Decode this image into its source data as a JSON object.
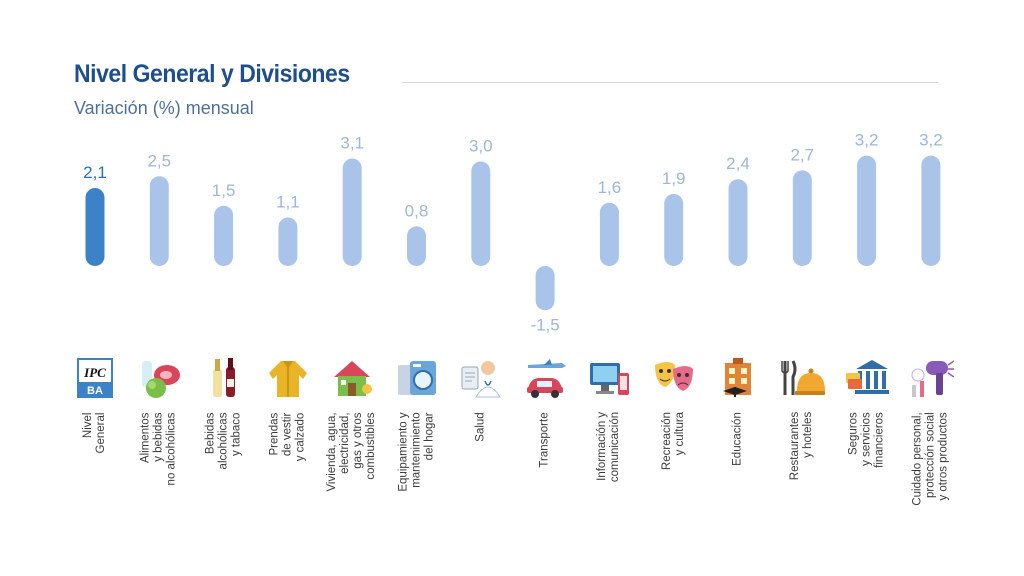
{
  "title": "Nivel General y Divisiones",
  "subtitle": "Variación (%) mensual",
  "colors": {
    "highlight": "#3b82c7",
    "bar": "#a9c4e8",
    "label_highlight": "#2c6fb8",
    "label": "#9db6d9",
    "title": "#1f4e8c"
  },
  "chart_data": {
    "type": "bar",
    "title": "Nivel General y Divisiones",
    "subtitle": "Variación (%) mensual",
    "xlabel": "",
    "ylabel": "",
    "ylim": [
      -1.5,
      3.2
    ],
    "grid": false,
    "legend": "none",
    "categories": [
      "Nivel General",
      "Alimentos y bebidas no alcohólicas",
      "Bebidas alcohólicas y tabaco",
      "Prendas de vestir y calzado",
      "Vivienda, agua, electricidad, gas y otros combustibles",
      "Equipamiento y mantenimiento del hogar",
      "Salud",
      "Transporte",
      "Información y comunicación",
      "Recreación y cultura",
      "Educación",
      "Restaurantes y hoteles",
      "Seguros y servicios financieros",
      "Cuidado personal, protección social y otros productos"
    ],
    "values": [
      2.1,
      2.5,
      1.5,
      1.1,
      3.1,
      0.8,
      3.0,
      -1.5,
      1.6,
      1.9,
      2.4,
      2.7,
      3.2,
      3.2
    ],
    "value_labels": [
      "2,1",
      "2,5",
      "1,5",
      "1,1",
      "3,1",
      "0,8",
      "3,0",
      "-1,5",
      "1,6",
      "1,9",
      "2,4",
      "2,7",
      "3,2",
      "3,2"
    ],
    "highlight_index": 0
  },
  "category_label_lines": [
    [
      "Nivel",
      "General"
    ],
    [
      "Alimentos",
      "y bebidas",
      "no alcohólicas"
    ],
    [
      "Bebidas",
      "alcohólicas",
      "y tabaco"
    ],
    [
      "Prendas",
      "de vestir",
      "y calzado"
    ],
    [
      "Vivienda, agua,",
      "electricidad,",
      "gas y otros",
      "combustibles"
    ],
    [
      "Equipamiento y",
      "mantenimiento",
      "del hogar"
    ],
    [
      "Salud"
    ],
    [
      "Transporte"
    ],
    [
      "Información y",
      "comunicación"
    ],
    [
      "Recreación",
      "y cultura"
    ],
    [
      "Educación"
    ],
    [
      "Restaurantes",
      "y hoteles"
    ],
    [
      "Seguros",
      "y servicios",
      "financieros"
    ],
    [
      "Cuidado personal,",
      "protección social",
      "y otros productos"
    ]
  ],
  "icons": [
    "ipc-ba-logo-icon",
    "food-icon",
    "wine-bottles-icon",
    "jacket-icon",
    "house-icon",
    "washing-machine-icon",
    "doctor-icon",
    "plane-car-icon",
    "computer-phone-icon",
    "theater-masks-icon",
    "school-building-icon",
    "dining-bell-icon",
    "bank-icon",
    "hair-dryer-icon"
  ],
  "logo_text": {
    "top": "IPC",
    "bottom": "BA"
  }
}
